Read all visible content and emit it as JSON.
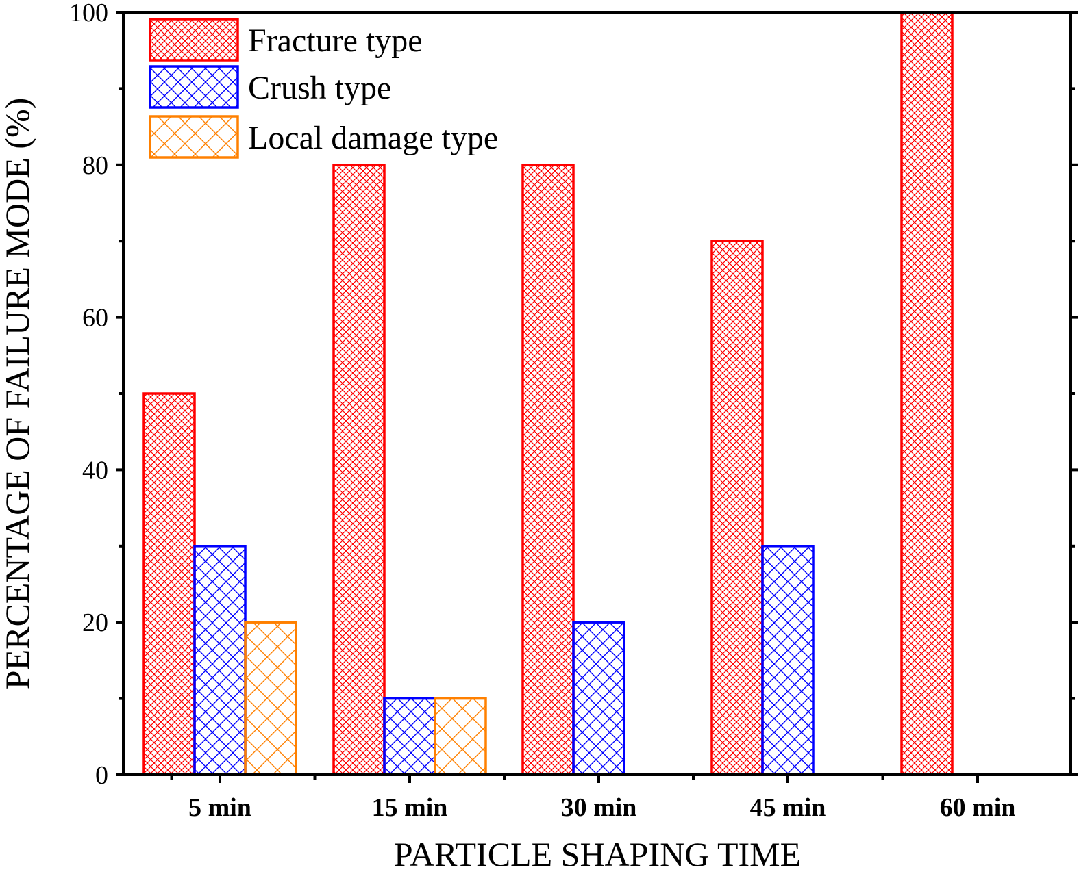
{
  "chart_data": {
    "type": "bar",
    "title": "",
    "xlabel": "PARTICLE SHAPING TIME",
    "ylabel": "PERCENTAGE OF FAILURE MODE (%)",
    "categories": [
      "5 min",
      "15 min",
      "30 min",
      "45 min",
      "60 min"
    ],
    "series": [
      {
        "name": "Fracture type",
        "values": [
          50,
          80,
          80,
          70,
          100
        ],
        "color": "#ff0000",
        "pattern": "fine-crosshatch"
      },
      {
        "name": "Crush type",
        "values": [
          30,
          10,
          20,
          30,
          0
        ],
        "color": "#0000ff",
        "pattern": "crosshatch"
      },
      {
        "name": "Local damage type",
        "values": [
          20,
          10,
          0,
          0,
          0
        ],
        "color": "#ff8000",
        "pattern": "wide-crosshatch"
      }
    ],
    "ylim": [
      0,
      100
    ],
    "yticks": [
      0,
      20,
      40,
      60,
      80,
      100
    ],
    "grid": false,
    "legend_position": "top-left"
  }
}
